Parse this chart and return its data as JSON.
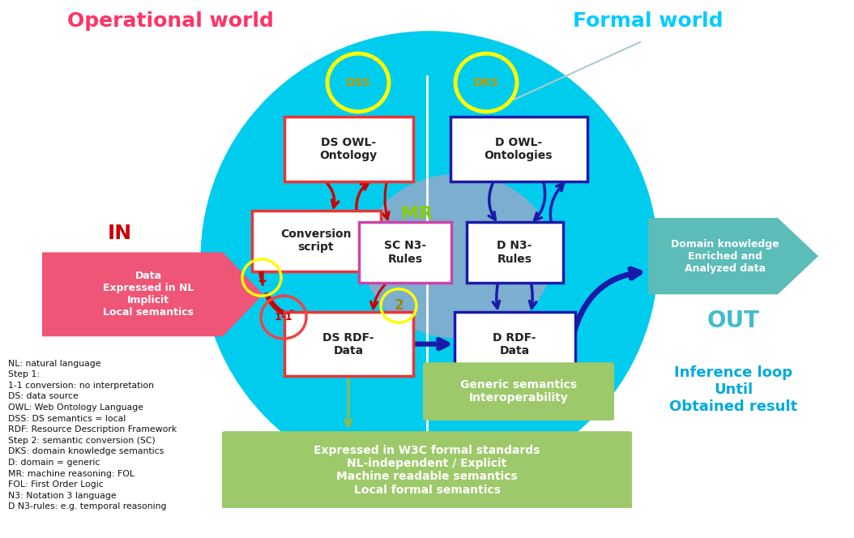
{
  "bg_color": "#ffffff",
  "title_left": "Operational world",
  "title_right": "Formal world",
  "title_left_color": "#ff3366",
  "title_right_color": "#00ccff",
  "legend_lines": [
    "NL: natural language",
    "Step 1:",
    "1-1 conversion: no interpretation",
    "DS: data source",
    "OWL: Web Ontology Language",
    "DSS: DS semantics = local",
    "RDF: Resource Description Framework",
    "Step 2: semantic conversion (SC)",
    "DKS: domain knowledge semantics",
    "D: domain = generic",
    "MR: machine reasoning: FOL",
    "FOL: First Order Logic",
    "N3: Notation 3 language",
    "D N3-rules: e.g. temporal reasoning"
  ],
  "bottom_box_text": "Expressed in W3C formal standards\nNL-independent / Explicit\nMachine readable semantics\nLocal formal semantics",
  "bottom_box_color": "#9ec96a",
  "generic_sem_text": "Generic semantics\nInteroperability",
  "generic_sem_color": "#9ec96a",
  "inference_text": "Inference loop\nUntil\nObtained result",
  "inference_color": "#00aadd",
  "out_arrow_text": "Domain knowledge\nEnriched and\nAnalyzed data",
  "out_arrow_color": "#5bbcb8"
}
